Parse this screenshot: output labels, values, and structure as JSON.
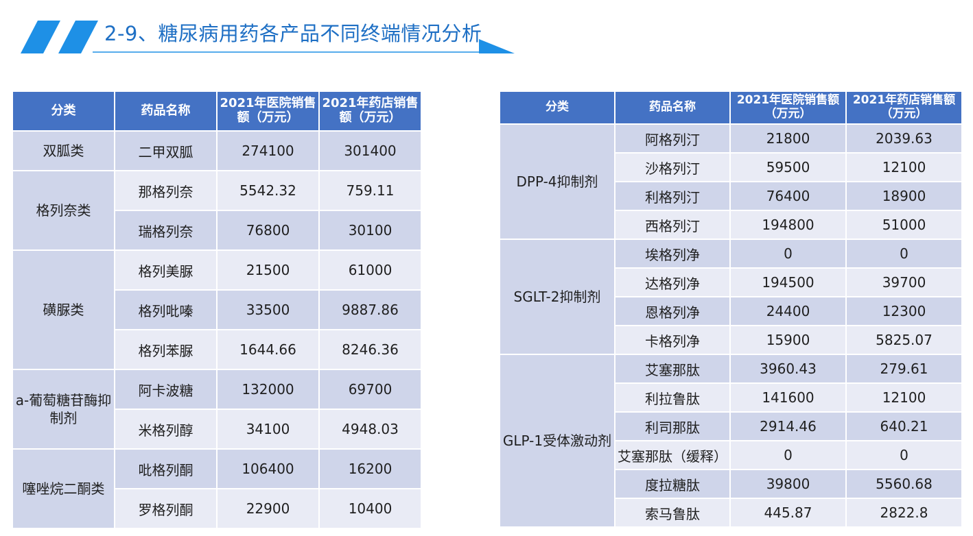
{
  "title": "2-9、糖尿病用药各产品不同终端情况分析",
  "colors": {
    "header_bg": "#4472c4",
    "cell_dark": "#cfd5ea",
    "cell_light": "#e9ebf5",
    "accent": "#1e90e6",
    "title": "#1e6fc4"
  },
  "left_table": {
    "headers": [
      "分类",
      "药品名称",
      "2021年医院销售额（万元）",
      "2021年药店销售额（万元）"
    ],
    "groups": [
      {
        "category": "双胍类",
        "rows": [
          {
            "drug": "二甲双胍",
            "hospital": "274100",
            "pharmacy": "301400"
          }
        ]
      },
      {
        "category": "格列奈类",
        "rows": [
          {
            "drug": "那格列奈",
            "hospital": "5542.32",
            "pharmacy": "759.11"
          },
          {
            "drug": "瑞格列奈",
            "hospital": "76800",
            "pharmacy": "30100"
          }
        ]
      },
      {
        "category": "磺脲类",
        "rows": [
          {
            "drug": "格列美脲",
            "hospital": "21500",
            "pharmacy": "61000"
          },
          {
            "drug": "格列吡嗪",
            "hospital": "33500",
            "pharmacy": "9887.86"
          },
          {
            "drug": "格列苯脲",
            "hospital": "1644.66",
            "pharmacy": "8246.36"
          }
        ]
      },
      {
        "category": "a-葡萄糖苷酶抑制剂",
        "rows": [
          {
            "drug": "阿卡波糖",
            "hospital": "132000",
            "pharmacy": "69700"
          },
          {
            "drug": "米格列醇",
            "hospital": "34100",
            "pharmacy": "4948.03"
          }
        ]
      },
      {
        "category": "噻唑烷二酮类",
        "rows": [
          {
            "drug": "吡格列酮",
            "hospital": "106400",
            "pharmacy": "16200"
          },
          {
            "drug": "罗格列酮",
            "hospital": "22900",
            "pharmacy": "10400"
          }
        ]
      }
    ]
  },
  "right_table": {
    "headers": [
      "分类",
      "药品名称",
      "2021年医院销售额（万元）",
      "2021年药店销售额（万元）"
    ],
    "groups": [
      {
        "category": "DPP-4抑制剂",
        "rows": [
          {
            "drug": "阿格列汀",
            "hospital": "21800",
            "pharmacy": "2039.63"
          },
          {
            "drug": "沙格列汀",
            "hospital": "59500",
            "pharmacy": "12100"
          },
          {
            "drug": "利格列汀",
            "hospital": "76400",
            "pharmacy": "18900"
          },
          {
            "drug": "西格列汀",
            "hospital": "194800",
            "pharmacy": "51000"
          }
        ]
      },
      {
        "category": "SGLT-2抑制剂",
        "rows": [
          {
            "drug": "埃格列净",
            "hospital": "0",
            "pharmacy": "0"
          },
          {
            "drug": "达格列净",
            "hospital": "194500",
            "pharmacy": "39700"
          },
          {
            "drug": "恩格列净",
            "hospital": "24400",
            "pharmacy": "12300"
          },
          {
            "drug": "卡格列净",
            "hospital": "15900",
            "pharmacy": "5825.07"
          }
        ]
      },
      {
        "category": "GLP-1受体激动剂",
        "rows": [
          {
            "drug": "艾塞那肽",
            "hospital": "3960.43",
            "pharmacy": "279.61"
          },
          {
            "drug": "利拉鲁肽",
            "hospital": "141600",
            "pharmacy": "12100"
          },
          {
            "drug": "利司那肽",
            "hospital": "2914.46",
            "pharmacy": "640.21"
          },
          {
            "drug": "艾塞那肽（缓释）",
            "hospital": "0",
            "pharmacy": "0"
          },
          {
            "drug": "度拉糖肽",
            "hospital": "39800",
            "pharmacy": "5560.68"
          },
          {
            "drug": "索马鲁肽",
            "hospital": "445.87",
            "pharmacy": "2822.8"
          }
        ]
      }
    ]
  }
}
